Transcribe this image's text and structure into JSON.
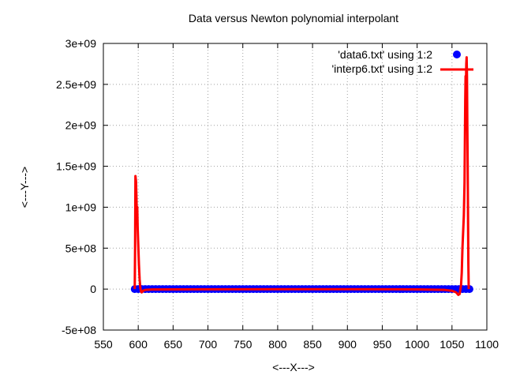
{
  "chart_data": {
    "type": "scatter",
    "title": "Data versus Newton polynomial interpolant",
    "xlabel": "<---X--->",
    "ylabel": "<---Y--->",
    "xlim": [
      550,
      1100
    ],
    "ylim": [
      -500000000,
      3000000000
    ],
    "x_ticks": [
      550,
      600,
      650,
      700,
      750,
      800,
      850,
      900,
      950,
      1000,
      1050,
      1100
    ],
    "x_tick_labels": [
      "550",
      "600",
      "650",
      "700",
      "750",
      "800",
      "850",
      "900",
      "950",
      "1000",
      "1050",
      "1100"
    ],
    "y_ticks": [
      -500000000,
      0,
      500000000,
      1000000000,
      1500000000,
      2000000000,
      2500000000,
      3000000000
    ],
    "y_tick_labels": [
      "-5e+08",
      "0",
      "5e+08",
      "1e+09",
      "1.5e+09",
      "2e+09",
      "2.5e+09",
      "3e+09"
    ],
    "grid": true,
    "legend_position": "top-right",
    "series": [
      {
        "name": "'data6.txt' using 1:2",
        "style": "points",
        "color": "#0000ff",
        "x_start": 595,
        "x_end": 1075,
        "x_step": 5,
        "y_constant": 0
      },
      {
        "name": "'interp6.txt' using 1:2",
        "style": "line",
        "color": "#ff0000",
        "points": [
          [
            595,
            0
          ],
          [
            595.5,
            500000000
          ],
          [
            596,
            1380000000
          ],
          [
            596.8,
            1320000000
          ],
          [
            597.5,
            1100000000
          ],
          [
            598,
            850000000
          ],
          [
            598.6,
            1000000000
          ],
          [
            599.2,
            750000000
          ],
          [
            600,
            550000000
          ],
          [
            601,
            300000000
          ],
          [
            602,
            120000000
          ],
          [
            603,
            20000000
          ],
          [
            604,
            -30000000
          ],
          [
            605,
            -40000000
          ],
          [
            607,
            -20000000
          ],
          [
            610,
            -10000000
          ],
          [
            620,
            -5000000
          ],
          [
            650,
            -3000000
          ],
          [
            700,
            -2000000
          ],
          [
            800,
            -1000000
          ],
          [
            900,
            -1000000
          ],
          [
            1000,
            -3000000
          ],
          [
            1040,
            -10000000
          ],
          [
            1050,
            -20000000
          ],
          [
            1056,
            -40000000
          ],
          [
            1059,
            -70000000
          ],
          [
            1061,
            -60000000
          ],
          [
            1063,
            50000000
          ],
          [
            1064,
            200000000
          ],
          [
            1065,
            500000000
          ],
          [
            1066,
            700000000
          ],
          [
            1067,
            900000000
          ],
          [
            1068,
            1300000000
          ],
          [
            1068.5,
            1800000000
          ],
          [
            1069,
            2300000000
          ],
          [
            1069.5,
            2600000000
          ],
          [
            1070,
            2450000000
          ],
          [
            1070.5,
            2750000000
          ],
          [
            1071,
            2830000000
          ],
          [
            1071.5,
            2600000000
          ],
          [
            1072,
            2000000000
          ],
          [
            1072.5,
            1500000000
          ],
          [
            1073,
            900000000
          ],
          [
            1073.5,
            300000000
          ],
          [
            1074,
            0
          ]
        ]
      }
    ]
  }
}
